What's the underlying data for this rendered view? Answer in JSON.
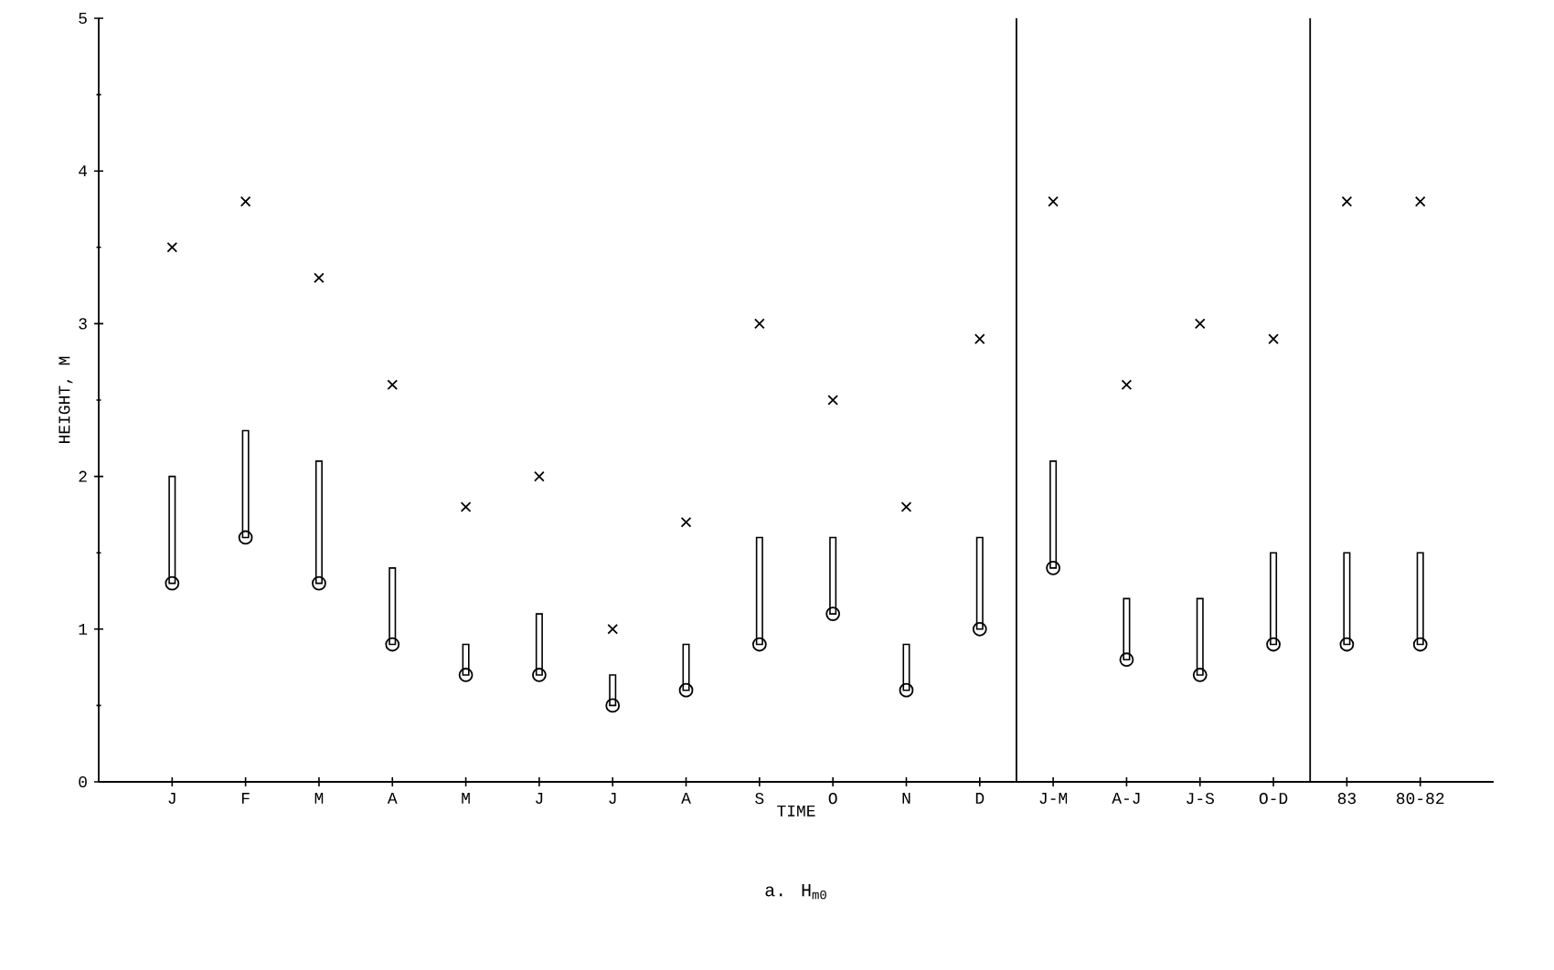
{
  "chart_data": {
    "type": "bar",
    "title": "a. H$_{m0}$",
    "xlabel": "TIME",
    "ylabel": "HEIGHT, M",
    "categories": [
      "J",
      "F",
      "M",
      "A",
      "M",
      "J",
      "J",
      "A",
      "S",
      "O",
      "N",
      "D",
      "J-M",
      "A-J",
      "J-S",
      "O-D",
      "83",
      "80-82"
    ],
    "series": [
      {
        "color": "#000000",
        "base": [
          1.3,
          1.6,
          1.3,
          0.9,
          0.7,
          0.7,
          0.5,
          0.6,
          0.9,
          1.1,
          0.6,
          1.0,
          1.4,
          0.8,
          0.7,
          0.9,
          0.9,
          0.9
        ],
        "values": [
          0.7,
          0.7,
          0.8,
          0.5,
          0.2,
          0.4,
          0.2,
          0.3,
          0.7,
          0.5,
          0.3,
          0.6,
          0.7,
          0.4,
          0.5,
          0.6,
          0.6,
          0.6
        ]
      },
      {
        "type": "scatter",
        "marker": "circle",
        "color": "#000000",
        "values": [
          1.3,
          1.6,
          1.3,
          0.9,
          0.7,
          0.7,
          0.5,
          0.6,
          0.9,
          1.1,
          0.6,
          1.0,
          1.4,
          0.8,
          0.7,
          0.9,
          0.9,
          0.9
        ]
      },
      {
        "type": "scatter",
        "marker": "cross",
        "color": "#000000",
        "values": [
          3.5,
          3.8,
          3.3,
          2.6,
          1.8,
          2.0,
          1.0,
          1.7,
          3.0,
          2.5,
          1.8,
          2.9,
          3.8,
          2.6,
          3.0,
          2.9,
          3.8,
          3.8
        ]
      }
    ],
    "ylim": [
      0,
      5
    ],
    "yticks": [
      0,
      1,
      2,
      3,
      4,
      5
    ]
  }
}
